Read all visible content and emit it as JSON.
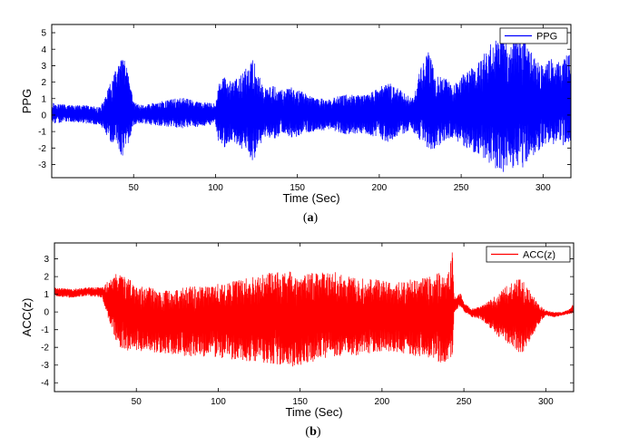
{
  "chart_data": [
    {
      "type": "line",
      "caption_open": "(",
      "caption_letter": "a",
      "caption_close": ")",
      "xlabel": "Time (Sec)",
      "ylabel": "PPG",
      "xlim": [
        0,
        317
      ],
      "ylim": [
        -3.8,
        5.5
      ],
      "xticks": [
        50,
        100,
        150,
        200,
        250,
        300
      ],
      "yticks": [
        -3,
        -2,
        -1,
        0,
        1,
        2,
        3,
        4,
        5
      ],
      "legend": "top-right",
      "grid": false,
      "color": "#0000ff",
      "series": [
        {
          "name": "PPG",
          "envelope_time": [
            0,
            10,
            20,
            30,
            34,
            38,
            41,
            44,
            47,
            50,
            55,
            60,
            70,
            80,
            90,
            100,
            102,
            106,
            110,
            115,
            120,
            123,
            126,
            130,
            135,
            140,
            145,
            150,
            155,
            160,
            170,
            180,
            190,
            200,
            205,
            210,
            220,
            225,
            230,
            235,
            240,
            245,
            250,
            255,
            260,
            265,
            270,
            275,
            280,
            285,
            290,
            295,
            300,
            305,
            310,
            315,
            317
          ],
          "envelope_upper": [
            0.8,
            0.6,
            0.6,
            0.5,
            1.5,
            2.5,
            3.2,
            3.6,
            2.3,
            0.8,
            0.6,
            0.7,
            0.9,
            1.1,
            0.8,
            0.7,
            2.0,
            2.5,
            2.0,
            2.4,
            3.0,
            3.4,
            2.5,
            1.6,
            1.8,
            1.5,
            1.7,
            1.6,
            1.3,
            1.1,
            1.0,
            1.3,
            1.2,
            1.7,
            2.0,
            1.8,
            1.0,
            2.8,
            3.9,
            2.4,
            2.3,
            1.9,
            2.4,
            2.8,
            3.1,
            4.0,
            4.5,
            5.0,
            4.2,
            5.1,
            4.6,
            3.4,
            3.0,
            3.6,
            3.2,
            3.7,
            3.6
          ],
          "envelope_lower": [
            -0.6,
            -0.4,
            -0.5,
            -0.6,
            -1.4,
            -1.8,
            -2.3,
            -2.6,
            -1.8,
            -0.6,
            -0.5,
            -0.6,
            -0.7,
            -0.8,
            -0.7,
            -0.6,
            -1.7,
            -2.0,
            -1.5,
            -2.0,
            -2.6,
            -2.8,
            -2.2,
            -1.3,
            -1.5,
            -1.2,
            -1.4,
            -1.3,
            -1.1,
            -1.0,
            -0.9,
            -1.2,
            -1.1,
            -1.4,
            -1.7,
            -1.4,
            -0.9,
            -1.6,
            -2.3,
            -2.0,
            -1.6,
            -1.4,
            -1.8,
            -2.1,
            -2.4,
            -2.7,
            -3.2,
            -3.6,
            -3.1,
            -3.5,
            -3.2,
            -2.3,
            -2.0,
            -1.8,
            -1.7,
            -2.0,
            -1.9
          ]
        }
      ]
    },
    {
      "type": "line",
      "caption_open": "(",
      "caption_letter": "b",
      "caption_close": ")",
      "xlabel": "Time (Sec)",
      "ylabel": "ACC(z)",
      "xlim": [
        0,
        317
      ],
      "ylim": [
        -4.5,
        3.9
      ],
      "xticks": [
        50,
        100,
        150,
        200,
        250,
        300
      ],
      "yticks": [
        -4,
        -3,
        -2,
        -1,
        0,
        1,
        2,
        3
      ],
      "legend": "top-right",
      "grid": false,
      "color": "#ff0000",
      "series": [
        {
          "name": "ACC(z)",
          "envelope_time": [
            0,
            10,
            20,
            29,
            31,
            34,
            37,
            40,
            45,
            50,
            60,
            70,
            80,
            90,
            100,
            110,
            120,
            130,
            140,
            145,
            150,
            160,
            170,
            180,
            190,
            200,
            210,
            220,
            230,
            235,
            240,
            243,
            244,
            245,
            248,
            250,
            255,
            260,
            265,
            270,
            275,
            280,
            285,
            290,
            295,
            300,
            305,
            310,
            315,
            317
          ],
          "envelope_upper": [
            1.4,
            1.3,
            1.4,
            1.4,
            1.6,
            1.9,
            2.2,
            2.1,
            1.9,
            1.5,
            1.4,
            1.3,
            1.4,
            1.5,
            1.6,
            1.8,
            2.0,
            2.2,
            2.3,
            2.4,
            2.2,
            2.2,
            2.3,
            2.0,
            1.9,
            1.8,
            1.7,
            1.9,
            2.0,
            2.4,
            2.1,
            3.5,
            0.8,
            0.9,
            1.1,
            0.5,
            0.2,
            0.3,
            0.6,
            1.0,
            1.4,
            1.8,
            1.9,
            1.3,
            0.5,
            0.1,
            0.0,
            0.0,
            0.2,
            0.5
          ],
          "envelope_lower": [
            0.9,
            0.8,
            0.9,
            0.8,
            0.2,
            -0.8,
            -1.6,
            -2.0,
            -2.2,
            -2.2,
            -2.3,
            -2.4,
            -2.5,
            -2.6,
            -2.6,
            -2.7,
            -2.8,
            -2.9,
            -3.0,
            -3.1,
            -3.0,
            -2.8,
            -2.6,
            -2.5,
            -2.4,
            -2.2,
            -2.3,
            -2.5,
            -2.6,
            -3.0,
            -2.8,
            -2.5,
            -0.1,
            0.1,
            0.3,
            0.0,
            -0.3,
            -0.4,
            -0.8,
            -1.3,
            -1.7,
            -2.0,
            -2.4,
            -1.8,
            -0.8,
            -0.2,
            -0.3,
            -0.2,
            -0.1,
            -0.1
          ]
        }
      ]
    }
  ]
}
